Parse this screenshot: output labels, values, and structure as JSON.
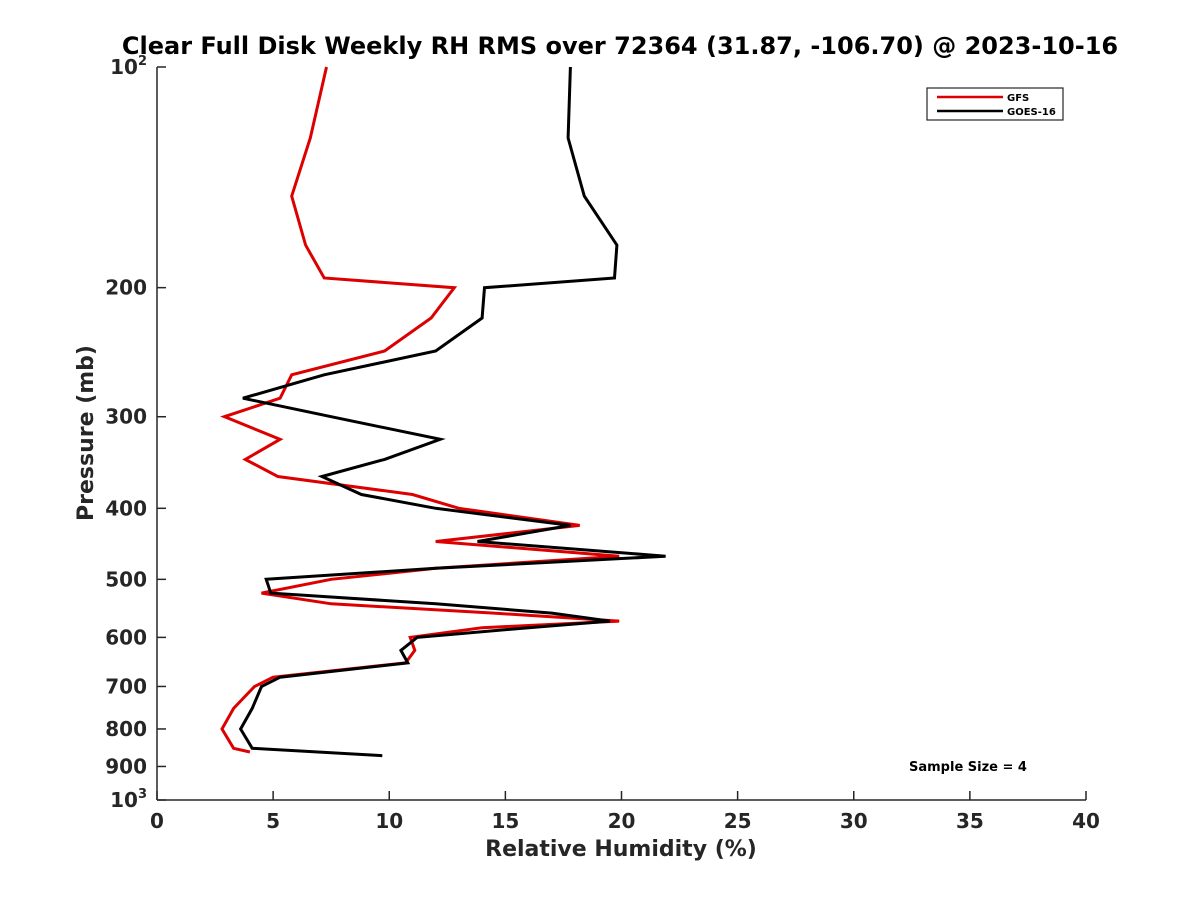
{
  "chart_data": {
    "type": "line",
    "title": "Clear Full Disk Weekly RH RMS over 72364 (31.87, -106.70) @ 2023-10-16",
    "xlabel": "Relative Humidity (%)",
    "ylabel": "Pressure (mb)",
    "xlim": [
      0,
      40
    ],
    "ylim": [
      100,
      1000
    ],
    "yscale": "log",
    "y_reversed": true,
    "xticks": [
      0,
      5,
      10,
      15,
      20,
      25,
      30,
      35,
      40
    ],
    "yticks": [
      {
        "value": 100,
        "base": "10",
        "exp": "2"
      },
      {
        "value": 200,
        "label": "200"
      },
      {
        "value": 300,
        "label": "300"
      },
      {
        "value": 400,
        "label": "400"
      },
      {
        "value": 500,
        "label": "500"
      },
      {
        "value": 600,
        "label": "600"
      },
      {
        "value": 700,
        "label": "700"
      },
      {
        "value": 800,
        "label": "800"
      },
      {
        "value": 900,
        "label": "900"
      },
      {
        "value": 1000,
        "base": "10",
        "exp": "3"
      }
    ],
    "grid": false,
    "legend_position": "top-right",
    "annotation": "Sample Size = 4",
    "series": [
      {
        "name": "GFS",
        "color": "#dd0000",
        "points": [
          [
            7.3,
            100
          ],
          [
            6.6,
            125
          ],
          [
            5.8,
            150
          ],
          [
            6.4,
            175
          ],
          [
            7.2,
            194
          ],
          [
            12.8,
            200
          ],
          [
            11.8,
            220
          ],
          [
            9.8,
            244
          ],
          [
            5.8,
            263
          ],
          [
            5.3,
            283
          ],
          [
            2.9,
            300
          ],
          [
            5.3,
            322
          ],
          [
            3.8,
            343
          ],
          [
            5.2,
            362
          ],
          [
            11.0,
            383
          ],
          [
            13.0,
            400
          ],
          [
            18.2,
            422
          ],
          [
            12.0,
            444
          ],
          [
            19.9,
            465
          ],
          [
            12.0,
            483
          ],
          [
            7.5,
            500
          ],
          [
            4.5,
            522
          ],
          [
            7.5,
            540
          ],
          [
            14.5,
            556
          ],
          [
            19.9,
            570
          ],
          [
            14.0,
            582
          ],
          [
            10.9,
            600
          ],
          [
            11.1,
            625
          ],
          [
            10.7,
            650
          ],
          [
            5.0,
            680
          ],
          [
            4.2,
            700
          ],
          [
            3.3,
            750
          ],
          [
            2.8,
            800
          ],
          [
            3.3,
            850
          ],
          [
            4.0,
            860
          ]
        ]
      },
      {
        "name": "GOES-16",
        "color": "#000000",
        "points": [
          [
            17.8,
            100
          ],
          [
            17.7,
            125
          ],
          [
            18.4,
            150
          ],
          [
            19.8,
            175
          ],
          [
            19.7,
            194
          ],
          [
            14.1,
            200
          ],
          [
            14.0,
            220
          ],
          [
            12.0,
            244
          ],
          [
            7.2,
            263
          ],
          [
            3.7,
            283
          ],
          [
            7.5,
            300
          ],
          [
            12.2,
            322
          ],
          [
            9.8,
            343
          ],
          [
            7.1,
            362
          ],
          [
            8.8,
            383
          ],
          [
            12.0,
            400
          ],
          [
            17.8,
            422
          ],
          [
            13.8,
            444
          ],
          [
            21.9,
            465
          ],
          [
            12.0,
            483
          ],
          [
            4.7,
            500
          ],
          [
            4.9,
            522
          ],
          [
            12.0,
            540
          ],
          [
            17.0,
            556
          ],
          [
            19.5,
            570
          ],
          [
            16.0,
            582
          ],
          [
            11.2,
            600
          ],
          [
            10.5,
            625
          ],
          [
            10.8,
            650
          ],
          [
            5.3,
            680
          ],
          [
            4.5,
            700
          ],
          [
            4.1,
            750
          ],
          [
            3.6,
            800
          ],
          [
            4.1,
            850
          ],
          [
            9.7,
            870
          ]
        ]
      }
    ]
  }
}
